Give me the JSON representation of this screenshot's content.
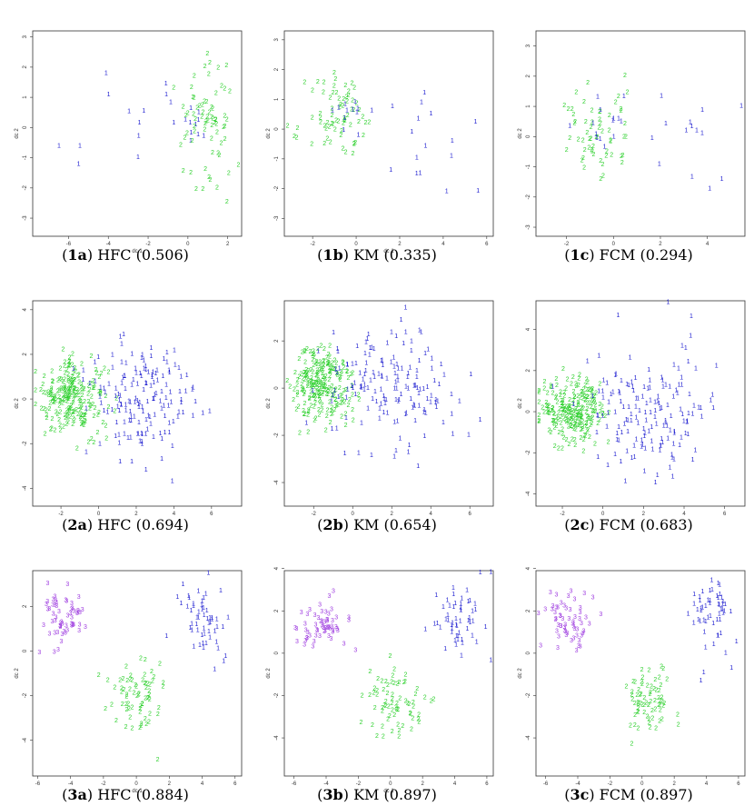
{
  "colors": {
    "1": "#1f1fd0",
    "2": "#2fd02f",
    "3": "#a040e0",
    "frame": "#333333"
  },
  "chart_data": [
    {
      "id": "1a",
      "type": "scatter",
      "xlabel": "dc 1",
      "ylabel": "dc 2",
      "xlim": [
        -7.8,
        2.7
      ],
      "ylim": [
        -3.6,
        3.2
      ],
      "xticks": [
        -6,
        -4,
        -2,
        0,
        2
      ],
      "yticks": [
        -3,
        -2,
        -1,
        0,
        1,
        2,
        3
      ],
      "caption": {
        "id": "1a",
        "method": "HFC",
        "score": "(0.506)"
      },
      "clusters": [
        {
          "label": "1",
          "n": 14,
          "cx": -3.5,
          "cy": 0.2,
          "sx": 2.2,
          "sy": 1.2,
          "seed": 11
        },
        {
          "label": "1",
          "n": 10,
          "cx": 0.6,
          "cy": -0.2,
          "sx": 0.4,
          "sy": 0.4,
          "seed": 12
        },
        {
          "label": "2",
          "n": 70,
          "cx": 0.9,
          "cy": 0.1,
          "sx": 0.7,
          "sy": 1.1,
          "seed": 13
        }
      ]
    },
    {
      "id": "1b",
      "type": "scatter",
      "xlabel": "dc 1",
      "ylabel": "dc 2",
      "xlim": [
        -3.3,
        6.3
      ],
      "ylim": [
        -3.6,
        3.3
      ],
      "xticks": [
        -2,
        0,
        2,
        4,
        6
      ],
      "yticks": [
        -3,
        -2,
        -1,
        0,
        1,
        2,
        3
      ],
      "caption": {
        "id": "1b",
        "method": "KM",
        "score": "(0.335)"
      },
      "clusters": [
        {
          "label": "2",
          "n": 70,
          "cx": -0.7,
          "cy": 0.3,
          "sx": 0.8,
          "sy": 0.7,
          "seed": 21
        },
        {
          "label": "1",
          "n": 12,
          "cx": -0.4,
          "cy": 0.5,
          "sx": 0.5,
          "sy": 0.4,
          "seed": 22
        },
        {
          "label": "1",
          "n": 16,
          "cx": 4.0,
          "cy": -0.6,
          "sx": 1.1,
          "sy": 0.9,
          "seed": 23
        }
      ]
    },
    {
      "id": "1c",
      "type": "scatter",
      "xlabel": "",
      "ylabel": "dc 2",
      "xlim": [
        -3.3,
        5.6
      ],
      "ylim": [
        -3.3,
        3.5
      ],
      "xticks": [
        -2,
        0,
        2,
        4
      ],
      "yticks": [
        -3,
        -2,
        -1,
        0,
        1,
        2,
        3
      ],
      "caption": {
        "id": "1c",
        "method": "FCM",
        "score": "(0.294)"
      },
      "clusters": [
        {
          "label": "2",
          "n": 60,
          "cx": -0.8,
          "cy": 0.0,
          "sx": 0.8,
          "sy": 0.8,
          "seed": 31
        },
        {
          "label": "1",
          "n": 14,
          "cx": -0.2,
          "cy": 0.3,
          "sx": 0.6,
          "sy": 0.5,
          "seed": 32
        },
        {
          "label": "1",
          "n": 14,
          "cx": 3.5,
          "cy": -0.6,
          "sx": 1.0,
          "sy": 1.0,
          "seed": 33
        }
      ]
    },
    {
      "id": "2a",
      "type": "scatter",
      "xlabel": "",
      "ylabel": "dc 2",
      "xlim": [
        -3.5,
        7.6
      ],
      "ylim": [
        -4.8,
        4.4
      ],
      "xticks": [
        -2,
        0,
        2,
        4,
        6
      ],
      "yticks": [
        -4,
        -2,
        0,
        2,
        4
      ],
      "caption": {
        "id": "2a",
        "method": "HFC",
        "score": "(0.694)"
      },
      "clusters": [
        {
          "label": "2",
          "n": 230,
          "cx": -1.4,
          "cy": 0.0,
          "sx": 0.9,
          "sy": 0.8,
          "seed": 41
        },
        {
          "label": "1",
          "n": 160,
          "cx": 2.2,
          "cy": 0.0,
          "sx": 1.5,
          "sy": 1.4,
          "seed": 42
        }
      ]
    },
    {
      "id": "2b",
      "type": "scatter",
      "xlabel": "",
      "ylabel": "dc 2",
      "xlim": [
        -3.5,
        7.2
      ],
      "ylim": [
        -5.0,
        3.7
      ],
      "xticks": [
        -2,
        0,
        2,
        4,
        6
      ],
      "yticks": [
        -4,
        -2,
        0,
        2
      ],
      "caption": {
        "id": "2b",
        "method": "KM",
        "score": "(0.654)"
      },
      "clusters": [
        {
          "label": "2",
          "n": 230,
          "cx": -1.6,
          "cy": 0.0,
          "sx": 0.8,
          "sy": 0.8,
          "seed": 51
        },
        {
          "label": "1",
          "n": 160,
          "cx": 2.0,
          "cy": 0.0,
          "sx": 1.6,
          "sy": 1.4,
          "seed": 52
        }
      ]
    },
    {
      "id": "2c",
      "type": "scatter",
      "xlabel": "",
      "ylabel": "dc 2",
      "xlim": [
        -3.3,
        7.0
      ],
      "ylim": [
        -4.6,
        5.4
      ],
      "xticks": [
        -2,
        0,
        2,
        4,
        6
      ],
      "yticks": [
        -4,
        -2,
        0,
        2,
        4
      ],
      "caption": {
        "id": "2c",
        "method": "FCM",
        "score": "(0.683)"
      },
      "clusters": [
        {
          "label": "2",
          "n": 230,
          "cx": -1.5,
          "cy": 0.0,
          "sx": 0.8,
          "sy": 0.8,
          "seed": 61
        },
        {
          "label": "1",
          "n": 160,
          "cx": 2.2,
          "cy": 0.0,
          "sx": 1.5,
          "sy": 1.5,
          "seed": 62
        }
      ]
    },
    {
      "id": "3a",
      "type": "scatter",
      "xlabel": "dc 1",
      "ylabel": "dc 2",
      "xlim": [
        -6.3,
        6.4
      ],
      "ylim": [
        -5.6,
        3.6
      ],
      "xticks": [
        -6,
        -4,
        -2,
        0,
        2,
        4,
        6
      ],
      "yticks": [
        -4,
        -2,
        0,
        2
      ],
      "caption": {
        "id": "3a",
        "method": "HFC",
        "score": "(0.884)"
      },
      "clusters": [
        {
          "label": "3",
          "n": 60,
          "cx": -4.4,
          "cy": 1.3,
          "sx": 0.7,
          "sy": 0.7,
          "seed": 71
        },
        {
          "label": "2",
          "n": 70,
          "cx": 0.0,
          "cy": -2.3,
          "sx": 0.9,
          "sy": 0.8,
          "seed": 72
        },
        {
          "label": "1",
          "n": 55,
          "cx": 4.2,
          "cy": 1.4,
          "sx": 0.8,
          "sy": 0.9,
          "seed": 73
        }
      ]
    },
    {
      "id": "3b",
      "type": "scatter",
      "xlabel": "dc 1",
      "ylabel": "dc 2",
      "xlim": [
        -6.6,
        6.4
      ],
      "ylim": [
        -5.8,
        3.9
      ],
      "xticks": [
        -6,
        -4,
        -2,
        0,
        2,
        4,
        6
      ],
      "yticks": [
        -4,
        -2,
        0,
        2,
        4
      ],
      "caption": {
        "id": "3b",
        "method": "KM",
        "score": "(0.897)"
      },
      "clusters": [
        {
          "label": "3",
          "n": 60,
          "cx": -4.4,
          "cy": 1.2,
          "sx": 0.7,
          "sy": 0.7,
          "seed": 81
        },
        {
          "label": "2",
          "n": 70,
          "cx": 0.4,
          "cy": -2.4,
          "sx": 0.9,
          "sy": 0.8,
          "seed": 82
        },
        {
          "label": "1",
          "n": 55,
          "cx": 4.4,
          "cy": 1.5,
          "sx": 0.8,
          "sy": 0.9,
          "seed": 83
        }
      ]
    },
    {
      "id": "3c",
      "type": "scatter",
      "xlabel": "",
      "ylabel": "dc 2",
      "xlim": [
        -6.6,
        6.4
      ],
      "ylim": [
        -5.8,
        3.9
      ],
      "xticks": [
        -6,
        -4,
        -2,
        0,
        2,
        4,
        6
      ],
      "yticks": [
        -4,
        -2,
        0,
        2,
        4
      ],
      "caption": {
        "id": "3c",
        "method": "FCM",
        "score": "(0.897)"
      },
      "clusters": [
        {
          "label": "3",
          "n": 60,
          "cx": -4.6,
          "cy": 1.4,
          "sx": 0.7,
          "sy": 0.7,
          "seed": 91
        },
        {
          "label": "2",
          "n": 70,
          "cx": 0.4,
          "cy": -2.5,
          "sx": 0.9,
          "sy": 0.8,
          "seed": 92
        },
        {
          "label": "1",
          "n": 55,
          "cx": 4.4,
          "cy": 1.6,
          "sx": 0.8,
          "sy": 0.9,
          "seed": 93
        }
      ]
    }
  ]
}
